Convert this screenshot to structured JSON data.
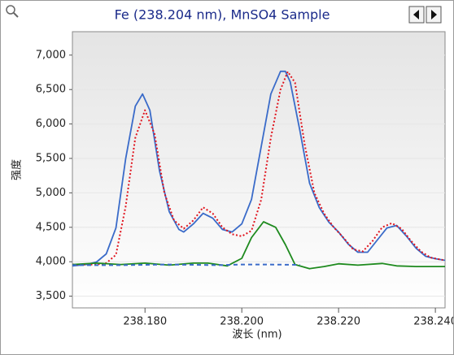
{
  "chart_data": {
    "type": "line",
    "title": "Fe (238.204 nm), MnSO4 Sample",
    "x_label": "波长 (nm)",
    "y_label": "强度",
    "xlim": [
      238.165,
      238.242
    ],
    "ylim": [
      3330,
      7340
    ],
    "xticks": [
      {
        "value": 238.18,
        "label": "238.180"
      },
      {
        "value": 238.2,
        "label": "238.200"
      },
      {
        "value": 238.22,
        "label": "238.220"
      },
      {
        "value": 238.24,
        "label": "238.240"
      }
    ],
    "yticks": [
      {
        "value": 3500,
        "label": "3,500"
      },
      {
        "value": 4000,
        "label": "4,000"
      },
      {
        "value": 4500,
        "label": "4,500"
      },
      {
        "value": 5000,
        "label": "5,000"
      },
      {
        "value": 5500,
        "label": "5,500"
      },
      {
        "value": 6000,
        "label": "6,000"
      },
      {
        "value": 6500,
        "label": "6,500"
      },
      {
        "value": 7000,
        "label": "7,000"
      }
    ],
    "grid": true,
    "series": [
      {
        "color": "#3a6bc9",
        "style": "solid",
        "x": [
          238.165,
          238.168,
          238.17,
          238.172,
          238.174,
          238.176,
          238.178,
          238.1795,
          238.181,
          238.183,
          238.185,
          238.187,
          238.188,
          238.19,
          238.192,
          238.194,
          238.196,
          238.198,
          238.2,
          238.202,
          238.204,
          238.206,
          238.208,
          238.209,
          238.21,
          238.212,
          238.214,
          238.216,
          238.218,
          238.22,
          238.222,
          238.224,
          238.226,
          238.228,
          238.23,
          238.232,
          238.234,
          238.236,
          238.238,
          238.24,
          238.242
        ],
        "values": [
          3938,
          3961,
          3996,
          4114,
          4491,
          5492,
          6258,
          6435,
          6200,
          5316,
          4727,
          4468,
          4432,
          4550,
          4703,
          4632,
          4468,
          4432,
          4550,
          4903,
          5669,
          6435,
          6764,
          6764,
          6611,
          5904,
          5139,
          4786,
          4574,
          4432,
          4256,
          4138,
          4138,
          4315,
          4491,
          4527,
          4374,
          4197,
          4079,
          4044,
          4020
        ]
      },
      {
        "color": "#e0141e",
        "style": "dotted",
        "x": [
          238.165,
          238.17,
          238.172,
          238.174,
          238.176,
          238.178,
          238.18,
          238.182,
          238.184,
          238.186,
          238.188,
          238.19,
          238.192,
          238.194,
          238.196,
          238.198,
          238.2,
          238.202,
          238.204,
          238.206,
          238.208,
          238.2095,
          238.211,
          238.213,
          238.215,
          238.217,
          238.219,
          238.221,
          238.223,
          238.225,
          238.227,
          238.229,
          238.231,
          238.233,
          238.235,
          238.237,
          238.239,
          238.242
        ],
        "values": [
          3960,
          3960,
          3980,
          4100,
          4800,
          5800,
          6200,
          5850,
          5000,
          4600,
          4480,
          4600,
          4790,
          4700,
          4500,
          4400,
          4370,
          4450,
          4900,
          5800,
          6500,
          6760,
          6600,
          5700,
          5000,
          4700,
          4500,
          4350,
          4180,
          4150,
          4300,
          4500,
          4560,
          4480,
          4300,
          4150,
          4060,
          4020
        ]
      },
      {
        "color": "#1e8a1e",
        "style": "solid",
        "x": [
          238.165,
          238.17,
          238.175,
          238.18,
          238.185,
          238.19,
          238.193,
          238.197,
          238.2,
          238.202,
          238.2045,
          238.207,
          238.209,
          238.211,
          238.214,
          238.217,
          238.22,
          238.224,
          238.229,
          238.232,
          238.236,
          238.242
        ],
        "values": [
          3960,
          3980,
          3960,
          3980,
          3950,
          3980,
          3980,
          3940,
          4050,
          4350,
          4580,
          4500,
          4250,
          3960,
          3900,
          3930,
          3970,
          3950,
          3975,
          3940,
          3930,
          3930
        ]
      },
      {
        "color": "#3a6bc9",
        "style": "dashed",
        "x": [
          238.165,
          238.175,
          238.185,
          238.195,
          238.2,
          238.205,
          238.212
        ],
        "values": [
          3950,
          3950,
          3960,
          3950,
          3960,
          3960,
          3955
        ]
      }
    ]
  }
}
